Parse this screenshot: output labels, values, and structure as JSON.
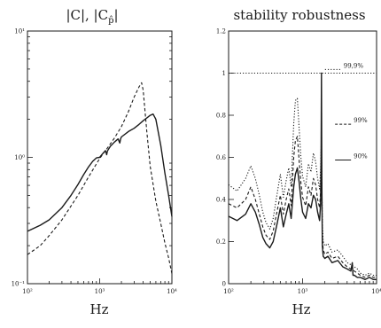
{
  "chart_data": [
    {
      "type": "line",
      "title": "|C|, |C_p̂|",
      "title_main": "|C|, |C",
      "title_sub": "p̂",
      "title_end": "|",
      "xlabel": "Hz",
      "ylabel": "",
      "xscale": "log",
      "yscale": "log",
      "xlim": [
        100,
        10000
      ],
      "ylim": [
        0.1,
        10
      ],
      "xticks": [
        {
          "v": 100,
          "label": "10²"
        },
        {
          "v": 1000,
          "label": "10³"
        },
        {
          "v": 10000,
          "label": "10⁴"
        }
      ],
      "yticks": [
        {
          "v": 0.1,
          "label": "10⁻¹"
        },
        {
          "v": 1,
          "label": "10⁰"
        },
        {
          "v": 10,
          "label": "10¹"
        }
      ],
      "series": [
        {
          "style": "solid",
          "x": [
            100,
            150,
            200,
            300,
            400,
            500,
            600,
            700,
            800,
            900,
            1000,
            1100,
            1200,
            1250,
            1280,
            1300,
            1400,
            1600,
            1800,
            1900,
            1950,
            2000,
            2500,
            3000,
            3500,
            4000,
            4500,
            5000,
            5500,
            6000,
            7000,
            8000,
            9000,
            10000
          ],
          "y": [
            0.26,
            0.29,
            0.32,
            0.4,
            0.5,
            0.61,
            0.73,
            0.84,
            0.93,
            0.99,
            1.0,
            1.07,
            1.13,
            1.05,
            1.12,
            1.14,
            1.22,
            1.32,
            1.4,
            1.3,
            1.4,
            1.45,
            1.6,
            1.7,
            1.82,
            1.95,
            2.05,
            2.15,
            2.2,
            2.0,
            1.25,
            0.75,
            0.5,
            0.34
          ]
        },
        {
          "style": "dashed",
          "x": [
            100,
            150,
            200,
            300,
            500,
            700,
            1000,
            1300,
            1600,
            2000,
            2500,
            3000,
            3500,
            3800,
            4000,
            4500,
            5000,
            6000,
            7000,
            8000,
            9000,
            10000
          ],
          "y": [
            0.17,
            0.2,
            0.24,
            0.32,
            0.5,
            0.7,
            0.98,
            1.2,
            1.42,
            1.75,
            2.3,
            3.0,
            3.6,
            3.9,
            3.4,
            1.6,
            0.85,
            0.45,
            0.3,
            0.21,
            0.16,
            0.12
          ]
        }
      ]
    },
    {
      "type": "line",
      "title": "stability robustness",
      "xlabel": "Hz",
      "ylabel": "",
      "xscale": "log",
      "yscale": "linear",
      "xlim": [
        100,
        10000
      ],
      "ylim": [
        0,
        1.2
      ],
      "xticks": [
        {
          "v": 100,
          "label": "10²"
        },
        {
          "v": 1000,
          "label": "10³"
        },
        {
          "v": 10000,
          "label": "10⁴"
        }
      ],
      "yticks": [
        {
          "v": 0,
          "label": "0"
        },
        {
          "v": 0.2,
          "label": "0.2"
        },
        {
          "v": 0.4,
          "label": "0.4"
        },
        {
          "v": 0.6,
          "label": "0.6"
        },
        {
          "v": 0.8,
          "label": "0.8"
        },
        {
          "v": 1,
          "label": "1"
        },
        {
          "v": 1.2,
          "label": "1.2"
        }
      ],
      "reference_line": {
        "y": 1,
        "style": "dotted"
      },
      "annotations": [
        {
          "label": "99,9%",
          "x": 1900,
          "y": 1.03
        },
        {
          "label": "99%",
          "x": 2600,
          "y": 0.77
        },
        {
          "label": "90%",
          "x": 2600,
          "y": 0.6
        }
      ],
      "series": [
        {
          "name": "90%",
          "style": "solid",
          "x": [
            100,
            130,
            170,
            200,
            230,
            260,
            290,
            320,
            360,
            400,
            450,
            500,
            550,
            600,
            650,
            700,
            760,
            800,
            850,
            900,
            950,
            1000,
            1100,
            1200,
            1300,
            1400,
            1500,
            1600,
            1700,
            1750,
            1780,
            1800,
            1820,
            1850,
            1900,
            2000,
            2200,
            2500,
            3000,
            3500,
            4000,
            4500,
            4700,
            4800,
            5000,
            5500,
            6000,
            7000,
            8000,
            9000,
            10000
          ],
          "y": [
            0.32,
            0.3,
            0.33,
            0.38,
            0.34,
            0.28,
            0.22,
            0.19,
            0.17,
            0.2,
            0.28,
            0.36,
            0.27,
            0.33,
            0.38,
            0.31,
            0.46,
            0.52,
            0.55,
            0.48,
            0.4,
            0.34,
            0.31,
            0.38,
            0.36,
            0.42,
            0.4,
            0.34,
            0.3,
            0.38,
            0.6,
            1.0,
            0.5,
            0.18,
            0.13,
            0.12,
            0.13,
            0.1,
            0.11,
            0.08,
            0.07,
            0.06,
            0.1,
            0.04,
            0.04,
            0.03,
            0.03,
            0.02,
            0.03,
            0.02,
            0.02
          ]
        },
        {
          "name": "99%",
          "style": "dashed",
          "x": [
            100,
            130,
            170,
            200,
            230,
            260,
            290,
            320,
            360,
            400,
            450,
            500,
            550,
            600,
            650,
            700,
            760,
            800,
            850,
            900,
            950,
            1000,
            1100,
            1200,
            1300,
            1400,
            1500,
            1600,
            1700,
            1750,
            1800,
            1850,
            1900,
            2000,
            2200,
            2500,
            3000,
            3500,
            4000,
            4500,
            5000,
            5500,
            6000,
            7000,
            8000,
            9000,
            10000
          ],
          "y": [
            0.38,
            0.36,
            0.4,
            0.46,
            0.4,
            0.33,
            0.27,
            0.23,
            0.21,
            0.25,
            0.34,
            0.42,
            0.33,
            0.4,
            0.45,
            0.37,
            0.6,
            0.68,
            0.7,
            0.58,
            0.48,
            0.41,
            0.37,
            0.46,
            0.42,
            0.5,
            0.47,
            0.4,
            0.36,
            0.44,
            0.6,
            0.22,
            0.16,
            0.14,
            0.15,
            0.12,
            0.13,
            0.1,
            0.08,
            0.07,
            0.06,
            0.05,
            0.04,
            0.03,
            0.04,
            0.03,
            0.03
          ]
        },
        {
          "name": "99,9%",
          "style": "dotted",
          "x": [
            100,
            130,
            170,
            200,
            230,
            260,
            290,
            320,
            360,
            400,
            450,
            500,
            550,
            600,
            650,
            700,
            760,
            800,
            850,
            900,
            950,
            1000,
            1100,
            1200,
            1300,
            1400,
            1500,
            1600,
            1700,
            1750,
            1800,
            1850,
            1900,
            2000,
            2200,
            2500,
            3000,
            3500,
            4000,
            4500,
            5000,
            5500,
            6000,
            7000,
            8000,
            9000,
            10000
          ],
          "y": [
            0.47,
            0.44,
            0.5,
            0.56,
            0.5,
            0.42,
            0.34,
            0.29,
            0.26,
            0.31,
            0.42,
            0.52,
            0.41,
            0.49,
            0.55,
            0.46,
            0.76,
            0.87,
            0.88,
            0.73,
            0.6,
            0.51,
            0.46,
            0.57,
            0.53,
            0.62,
            0.58,
            0.5,
            0.45,
            0.54,
            0.7,
            0.28,
            0.2,
            0.18,
            0.19,
            0.15,
            0.16,
            0.13,
            0.1,
            0.09,
            0.08,
            0.07,
            0.05,
            0.04,
            0.05,
            0.04,
            0.04
          ]
        }
      ]
    }
  ]
}
